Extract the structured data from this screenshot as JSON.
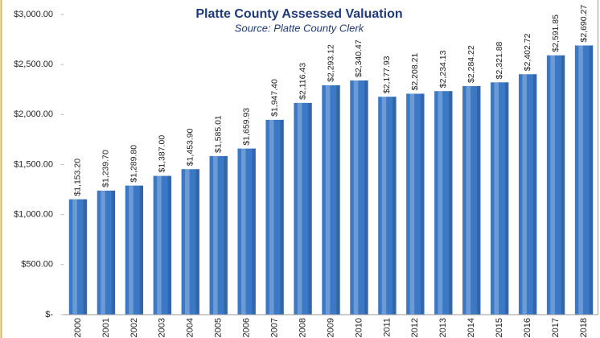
{
  "chart_data": {
    "type": "bar",
    "title": "Platte County Assessed Valuation",
    "subtitle": "Source: Platte County Clerk",
    "categories": [
      "2000",
      "2001",
      "2002",
      "2003",
      "2004",
      "2005",
      "2006",
      "2007",
      "2008",
      "2009",
      "2010",
      "2011",
      "2012",
      "2013",
      "2014",
      "2015",
      "2016",
      "2017",
      "2018"
    ],
    "values": [
      1153.2,
      1239.7,
      1289.8,
      1387.0,
      1453.9,
      1585.01,
      1659.93,
      1947.4,
      2116.43,
      2293.12,
      2340.47,
      2177.93,
      2208.21,
      2234.13,
      2284.22,
      2321.88,
      2402.72,
      2591.85,
      2690.27
    ],
    "value_labels": [
      "$1,153.20",
      "$1,239.70",
      "$1,289.80",
      "$1,387.00",
      "$1,453.90",
      "$1,585.01",
      "$1,659.93",
      "$1,947.40",
      "$2,116.43",
      "$2,293.12",
      "$2,340.47",
      "$2,177.93",
      "$2,208.21",
      "$2,234.13",
      "$2,284.22",
      "$2,321.88",
      "$2,402.72",
      "$2,591.85",
      "$2,690.27"
    ],
    "color": "#3b78c6",
    "ylim": [
      0,
      3000
    ],
    "yticks": [
      {
        "value": 0,
        "label": "$-"
      },
      {
        "value": 500,
        "label": "$500.00"
      },
      {
        "value": 1000,
        "label": "$1,000.00"
      },
      {
        "value": 1500,
        "label": "$1,500.00"
      },
      {
        "value": 2000,
        "label": "$2,000.00"
      },
      {
        "value": 2500,
        "label": "$2,500.00"
      },
      {
        "value": 3000,
        "label": "$3,000.00"
      }
    ],
    "grid": false
  }
}
